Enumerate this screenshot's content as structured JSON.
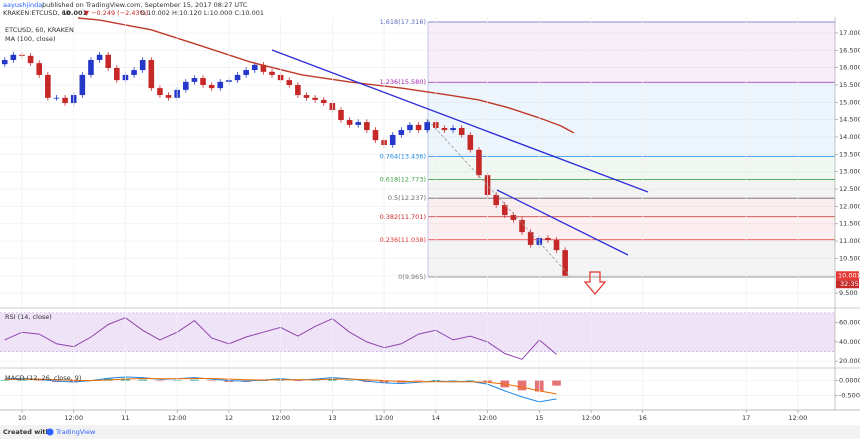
{
  "header": {
    "author": "aayushjindal",
    "published": "published on TradingView.com, September 15, 2017 08:27 UTC",
    "symbol": "KRAKEN:ETCUSD, 60",
    "last": "10.001",
    "change": "▼ −0.249 (−2.43%)",
    "ohlc": "O:10.002 H:10.120 L:10.000 C:10.001"
  },
  "footer": {
    "created": "Created with",
    "brand": "TradingView"
  },
  "chart_data": [
    {
      "type": "candlestick",
      "title": "ETCUSD, 60, KRAKEN",
      "up_color": "#2438c9",
      "down_color": "#c62828",
      "x": [
        -4,
        -2,
        0,
        2,
        4,
        6,
        8,
        10,
        12,
        14,
        16,
        18,
        20,
        22,
        24,
        26,
        28,
        30,
        32,
        34,
        36,
        38,
        40,
        42,
        44,
        46,
        48,
        50,
        52,
        54,
        56,
        58,
        60,
        62,
        64,
        66,
        68,
        70,
        72,
        74,
        76,
        78,
        80,
        82,
        84,
        86,
        88,
        90,
        92,
        94,
        96,
        98,
        100,
        102,
        104,
        106,
        108,
        110,
        112,
        114,
        116,
        118,
        120,
        122,
        124,
        126
      ],
      "open": [
        16.1,
        16.22,
        16.37,
        16.34,
        16.13,
        15.79,
        15.13,
        15.13,
        14.98,
        15.21,
        15.79,
        16.22,
        16.37,
        15.99,
        15.64,
        15.79,
        15.93,
        16.22,
        15.41,
        15.21,
        15.13,
        15.36,
        15.59,
        15.7,
        15.5,
        15.41,
        15.59,
        15.64,
        15.79,
        15.93,
        16.08,
        15.88,
        15.79,
        15.64,
        15.5,
        15.21,
        15.13,
        15.07,
        14.98,
        14.78,
        14.49,
        14.35,
        14.43,
        14.2,
        13.91,
        13.77,
        14.06,
        14.2,
        14.35,
        14.2,
        14.43,
        14.26,
        14.2,
        14.26,
        14.06,
        13.63,
        12.9,
        12.33,
        12.04,
        11.75,
        11.61,
        11.26,
        10.89,
        11.09,
        11.03,
        10.74
      ],
      "high": [
        16.3,
        16.45,
        16.45,
        16.42,
        16.21,
        15.87,
        15.21,
        15.21,
        15.29,
        15.87,
        16.3,
        16.45,
        16.45,
        16.07,
        15.87,
        16.01,
        16.3,
        16.3,
        15.49,
        15.29,
        15.44,
        15.67,
        15.78,
        15.78,
        15.58,
        15.67,
        15.72,
        15.87,
        16.01,
        16.16,
        16.16,
        15.96,
        15.87,
        15.72,
        15.58,
        15.29,
        15.21,
        15.15,
        15.06,
        14.86,
        14.57,
        14.51,
        14.51,
        14.28,
        13.99,
        14.14,
        14.28,
        14.43,
        14.43,
        14.51,
        14.51,
        14.34,
        14.34,
        14.34,
        14.14,
        13.71,
        12.98,
        12.41,
        12.12,
        11.83,
        11.69,
        11.34,
        11.17,
        11.17,
        11.11,
        10.82
      ],
      "low": [
        16.02,
        16.14,
        16.26,
        16.05,
        15.71,
        15.05,
        15.05,
        14.9,
        14.9,
        15.13,
        15.71,
        16.14,
        15.91,
        15.56,
        15.56,
        15.71,
        15.85,
        15.33,
        15.13,
        15.05,
        15.05,
        15.28,
        15.51,
        15.42,
        15.33,
        15.33,
        15.51,
        15.56,
        15.71,
        15.85,
        15.8,
        15.71,
        15.56,
        15.42,
        15.13,
        15.05,
        14.99,
        14.9,
        14.7,
        14.41,
        14.27,
        14.27,
        14.12,
        13.83,
        13.69,
        13.69,
        13.98,
        14.12,
        14.12,
        14.12,
        14.18,
        14.12,
        14.12,
        13.98,
        13.55,
        12.82,
        12.25,
        11.96,
        11.67,
        11.53,
        11.18,
        10.81,
        10.81,
        10.95,
        10.66,
        10.0
      ],
      "close": [
        16.22,
        16.37,
        16.34,
        16.13,
        15.79,
        15.13,
        15.13,
        14.98,
        15.21,
        15.79,
        16.22,
        16.37,
        15.99,
        15.64,
        15.79,
        15.93,
        16.22,
        15.41,
        15.21,
        15.13,
        15.36,
        15.59,
        15.7,
        15.5,
        15.41,
        15.59,
        15.64,
        15.79,
        15.93,
        16.08,
        15.88,
        15.79,
        15.64,
        15.5,
        15.21,
        15.13,
        15.07,
        14.98,
        14.78,
        14.49,
        14.35,
        14.43,
        14.2,
        13.91,
        13.77,
        14.06,
        14.2,
        14.35,
        14.2,
        14.43,
        14.26,
        14.2,
        14.26,
        14.06,
        13.63,
        12.9,
        12.33,
        12.04,
        11.75,
        11.61,
        11.26,
        10.89,
        11.09,
        11.03,
        10.74,
        10.001
      ],
      "series": [
        {
          "name": "MA (100, close)",
          "color": "#c0392b",
          "x": [
            13,
            18,
            30,
            41,
            53,
            65,
            76,
            88,
            99,
            106,
            113,
            120,
            125,
            128
          ],
          "values": [
            17.43,
            17.37,
            17.09,
            16.65,
            16.16,
            15.79,
            15.59,
            15.41,
            15.21,
            15.07,
            14.84,
            14.55,
            14.32,
            14.12
          ]
        }
      ],
      "levels": [
        {
          "label": "1.618(17.316)",
          "value": 17.316,
          "color": "#5c6bc0"
        },
        {
          "label": "1.236(15.580)",
          "value": 15.58,
          "color": "#9c27b0"
        },
        {
          "label": "0.764(13.436)",
          "value": 13.436,
          "color": "#1e88e5"
        },
        {
          "label": "0.618(12.773)",
          "value": 12.773,
          "color": "#43a047"
        },
        {
          "label": "0.5(12.237)",
          "value": 12.237,
          "color": "#666666"
        },
        {
          "label": "0.382(11.701)",
          "value": 11.701,
          "color": "#c62828"
        },
        {
          "label": "0.236(11.038)",
          "value": 11.038,
          "color": "#e53935"
        },
        {
          "label": "0(9.965)",
          "value": 9.965,
          "color": "#777777"
        }
      ],
      "last_price_label": "10.001",
      "countdown": "32:35",
      "xlim": [
        -5.1,
        188.6
      ],
      "xticks": [
        {
          "value": 0,
          "label": "10"
        },
        {
          "value": 12,
          "label": "12:00"
        },
        {
          "value": 24,
          "label": "11"
        },
        {
          "value": 36,
          "label": "12:00"
        },
        {
          "value": 48,
          "label": "12"
        },
        {
          "value": 60,
          "label": "12:00"
        },
        {
          "value": 72,
          "label": "13"
        },
        {
          "value": 84,
          "label": "12:00"
        },
        {
          "value": 96,
          "label": "14"
        },
        {
          "value": 108,
          "label": "12:00"
        },
        {
          "value": 120,
          "label": "15"
        },
        {
          "value": 132,
          "label": "12:00"
        },
        {
          "value": 144,
          "label": "16"
        },
        {
          "value": 168,
          "label": "17"
        },
        {
          "value": 180,
          "label": "12:00"
        }
      ],
      "ylim": [
        9.1,
        17.46
      ],
      "yticks": [
        {
          "value": 9.5,
          "label": "9.500"
        },
        {
          "value": 10,
          "label": "10.000"
        },
        {
          "value": 10.5,
          "label": "10.500"
        },
        {
          "value": 11,
          "label": "11.000"
        },
        {
          "value": 11.5,
          "label": "11.500"
        },
        {
          "value": 12,
          "label": "12.000"
        },
        {
          "value": 12.5,
          "label": "12.500"
        },
        {
          "value": 13,
          "label": "13.000"
        },
        {
          "value": 13.5,
          "label": "13.500"
        },
        {
          "value": 14,
          "label": "14.000"
        },
        {
          "value": 14.5,
          "label": "14.500"
        },
        {
          "value": 15,
          "label": "15.000"
        },
        {
          "value": 15.5,
          "label": "15.500"
        },
        {
          "value": 16,
          "label": "16.000"
        },
        {
          "value": 16.5,
          "label": "16.500"
        },
        {
          "value": 17,
          "label": "17.000"
        }
      ]
    },
    {
      "type": "line",
      "title": "RSI (14, close)",
      "color": "#8e44ad",
      "band": [
        30,
        70
      ],
      "x": [
        -4,
        0,
        4,
        8,
        12,
        16,
        20,
        24,
        28,
        32,
        36,
        40,
        44,
        48,
        52,
        56,
        60,
        64,
        68,
        72,
        76,
        80,
        84,
        88,
        92,
        96,
        100,
        104,
        108,
        112,
        116,
        120,
        124
      ],
      "values": [
        42,
        50,
        48,
        38,
        35,
        45,
        58,
        65,
        52,
        42,
        50,
        62,
        44,
        38,
        45,
        50,
        55,
        46,
        56,
        64,
        50,
        40,
        34,
        38,
        48,
        52,
        42,
        46,
        40,
        28,
        22,
        42,
        27
      ],
      "ylim": [
        14,
        74
      ],
      "yticks": [
        {
          "value": 60,
          "label": "60.0000"
        },
        {
          "value": 40,
          "label": "40.0000"
        },
        {
          "value": 20,
          "label": "20.0000"
        }
      ]
    },
    {
      "type": "macd",
      "title": "MACD (12, 26, close, 9)",
      "macd_color": "#1e88e5",
      "signal_color": "#ef6c00",
      "up_color": "#26a69a",
      "down_color": "#e57373",
      "x": [
        -4,
        0,
        4,
        8,
        12,
        16,
        20,
        24,
        28,
        32,
        36,
        40,
        44,
        48,
        52,
        56,
        60,
        64,
        68,
        72,
        76,
        80,
        84,
        88,
        92,
        96,
        100,
        104,
        108,
        112,
        116,
        120,
        124
      ],
      "macd": [
        0.05,
        0.08,
        0.04,
        -0.02,
        -0.05,
        0.0,
        0.08,
        0.12,
        0.1,
        0.04,
        0.06,
        0.1,
        0.05,
        0.0,
        -0.02,
        0.02,
        0.06,
        0.02,
        0.05,
        0.1,
        0.06,
        -0.02,
        -0.08,
        -0.1,
        -0.06,
        -0.02,
        -0.04,
        -0.03,
        -0.12,
        -0.35,
        -0.55,
        -0.72,
        -0.62
      ],
      "signal": [
        0.04,
        0.05,
        0.05,
        0.03,
        0.01,
        0.0,
        0.02,
        0.05,
        0.07,
        0.06,
        0.06,
        0.07,
        0.07,
        0.05,
        0.03,
        0.02,
        0.03,
        0.03,
        0.03,
        0.05,
        0.05,
        0.03,
        0.0,
        -0.03,
        -0.04,
        -0.04,
        -0.04,
        -0.04,
        -0.06,
        -0.12,
        -0.22,
        -0.35,
        -0.45
      ],
      "histogram": [
        0.01,
        0.03,
        -0.01,
        -0.05,
        -0.06,
        0.0,
        0.06,
        0.07,
        0.03,
        -0.02,
        0.0,
        0.03,
        -0.02,
        -0.05,
        -0.05,
        0.0,
        0.03,
        -0.01,
        0.02,
        0.05,
        0.01,
        -0.05,
        -0.08,
        -0.07,
        -0.02,
        0.02,
        0.0,
        0.01,
        -0.06,
        -0.23,
        -0.33,
        -0.37,
        -0.17
      ],
      "ylim": [
        -0.96,
        0.39
      ],
      "yticks": [
        {
          "value": 0,
          "label": "0.0000"
        },
        {
          "value": -0.5,
          "label": "-0.5000"
        }
      ]
    }
  ]
}
